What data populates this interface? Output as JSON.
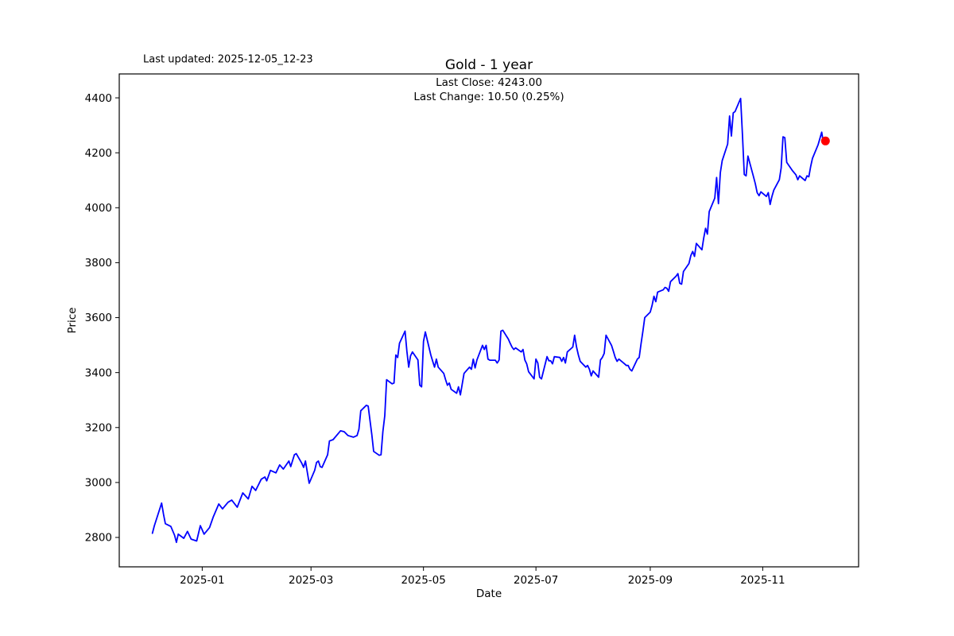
{
  "figure": {
    "title": "Gold - 1 year",
    "last_updated": "Last updated: 2025-12-05_12-23",
    "annotation_last_close": "Last Close: 4243.00",
    "annotation_last_change": "Last Change: 10.50 (0.25%)"
  },
  "chart_data": {
    "type": "line",
    "title": "Gold - 1 year",
    "xlabel": "Date",
    "ylabel": "Price",
    "grid": false,
    "legend": "none",
    "line_color": "#0000ff",
    "marker_color": "#ff0000",
    "axes_color": "#000000",
    "last_close": 4243.0,
    "last_change": 10.5,
    "last_change_pct": 0.25,
    "ylim": [
      2693,
      4487
    ],
    "xlim": [
      "2024-11-17",
      "2025-12-23"
    ],
    "y_ticks": [
      2800,
      3000,
      3200,
      3400,
      3600,
      3800,
      4000,
      4200,
      4400
    ],
    "x_ticks": [
      {
        "date": "2025-01-01",
        "label": "2025-01"
      },
      {
        "date": "2025-03-01",
        "label": "2025-03"
      },
      {
        "date": "2025-05-01",
        "label": "2025-05"
      },
      {
        "date": "2025-07-01",
        "label": "2025-07"
      },
      {
        "date": "2025-09-01",
        "label": "2025-09"
      },
      {
        "date": "2025-11-01",
        "label": "2025-11"
      }
    ],
    "last_point": [
      "2025-12-05",
      4243
    ],
    "series": [
      {
        "name": "Gold",
        "points": [
          [
            "2024-12-05",
            2815
          ],
          [
            "2024-12-06",
            2842
          ],
          [
            "2024-12-10",
            2925
          ],
          [
            "2024-12-11",
            2884
          ],
          [
            "2024-12-12",
            2850
          ],
          [
            "2024-12-15",
            2840
          ],
          [
            "2024-12-17",
            2808
          ],
          [
            "2024-12-18",
            2782
          ],
          [
            "2024-12-19",
            2812
          ],
          [
            "2024-12-22",
            2797
          ],
          [
            "2024-12-24",
            2822
          ],
          [
            "2024-12-26",
            2794
          ],
          [
            "2024-12-29",
            2787
          ],
          [
            "2024-12-31",
            2843
          ],
          [
            "2025-01-02",
            2812
          ],
          [
            "2025-01-05",
            2836
          ],
          [
            "2025-01-07",
            2875
          ],
          [
            "2025-01-10",
            2922
          ],
          [
            "2025-01-12",
            2904
          ],
          [
            "2025-01-15",
            2928
          ],
          [
            "2025-01-17",
            2936
          ],
          [
            "2025-01-20",
            2910
          ],
          [
            "2025-01-23",
            2962
          ],
          [
            "2025-01-26",
            2940
          ],
          [
            "2025-01-28",
            2986
          ],
          [
            "2025-01-30",
            2971
          ],
          [
            "2025-02-02",
            3012
          ],
          [
            "2025-02-04",
            3020
          ],
          [
            "2025-02-05",
            3006
          ],
          [
            "2025-02-07",
            3044
          ],
          [
            "2025-02-10",
            3035
          ],
          [
            "2025-02-12",
            3064
          ],
          [
            "2025-02-14",
            3049
          ],
          [
            "2025-02-17",
            3078
          ],
          [
            "2025-02-18",
            3058
          ],
          [
            "2025-02-20",
            3101
          ],
          [
            "2025-02-21",
            3105
          ],
          [
            "2025-02-24",
            3070
          ],
          [
            "2025-02-25",
            3055
          ],
          [
            "2025-02-26",
            3078
          ],
          [
            "2025-02-28",
            2997
          ],
          [
            "2025-03-03",
            3044
          ],
          [
            "2025-03-04",
            3073
          ],
          [
            "2025-03-05",
            3078
          ],
          [
            "2025-03-06",
            3058
          ],
          [
            "2025-03-07",
            3055
          ],
          [
            "2025-03-10",
            3101
          ],
          [
            "2025-03-11",
            3151
          ],
          [
            "2025-03-13",
            3156
          ],
          [
            "2025-03-17",
            3188
          ],
          [
            "2025-03-19",
            3185
          ],
          [
            "2025-03-21",
            3171
          ],
          [
            "2025-03-24",
            3165
          ],
          [
            "2025-03-26",
            3171
          ],
          [
            "2025-03-27",
            3194
          ],
          [
            "2025-03-28",
            3261
          ],
          [
            "2025-03-31",
            3281
          ],
          [
            "2025-04-01",
            3278
          ],
          [
            "2025-04-03",
            3174
          ],
          [
            "2025-04-04",
            3113
          ],
          [
            "2025-04-07",
            3099
          ],
          [
            "2025-04-08",
            3101
          ],
          [
            "2025-04-09",
            3185
          ],
          [
            "2025-04-10",
            3243
          ],
          [
            "2025-04-11",
            3374
          ],
          [
            "2025-04-14",
            3359
          ],
          [
            "2025-04-15",
            3362
          ],
          [
            "2025-04-16",
            3464
          ],
          [
            "2025-04-17",
            3455
          ],
          [
            "2025-04-18",
            3507
          ],
          [
            "2025-04-21",
            3551
          ],
          [
            "2025-04-22",
            3478
          ],
          [
            "2025-04-23",
            3420
          ],
          [
            "2025-04-24",
            3461
          ],
          [
            "2025-04-25",
            3475
          ],
          [
            "2025-04-28",
            3446
          ],
          [
            "2025-04-29",
            3354
          ],
          [
            "2025-04-30",
            3348
          ],
          [
            "2025-05-01",
            3513
          ],
          [
            "2025-05-02",
            3548
          ],
          [
            "2025-05-05",
            3464
          ],
          [
            "2025-05-06",
            3441
          ],
          [
            "2025-05-07",
            3420
          ],
          [
            "2025-05-08",
            3449
          ],
          [
            "2025-05-09",
            3420
          ],
          [
            "2025-05-12",
            3397
          ],
          [
            "2025-05-13",
            3374
          ],
          [
            "2025-05-14",
            3354
          ],
          [
            "2025-05-15",
            3362
          ],
          [
            "2025-05-16",
            3339
          ],
          [
            "2025-05-19",
            3325
          ],
          [
            "2025-05-20",
            3348
          ],
          [
            "2025-05-21",
            3319
          ],
          [
            "2025-05-23",
            3397
          ],
          [
            "2025-05-26",
            3420
          ],
          [
            "2025-05-27",
            3412
          ],
          [
            "2025-05-28",
            3449
          ],
          [
            "2025-05-29",
            3417
          ],
          [
            "2025-05-30",
            3446
          ],
          [
            "2025-06-02",
            3499
          ],
          [
            "2025-06-03",
            3484
          ],
          [
            "2025-06-04",
            3499
          ],
          [
            "2025-06-05",
            3449
          ],
          [
            "2025-06-06",
            3445
          ],
          [
            "2025-06-09",
            3445
          ],
          [
            "2025-06-10",
            3435
          ],
          [
            "2025-06-11",
            3446
          ],
          [
            "2025-06-12",
            3551
          ],
          [
            "2025-06-13",
            3554
          ],
          [
            "2025-06-16",
            3522
          ],
          [
            "2025-06-17",
            3507
          ],
          [
            "2025-06-18",
            3493
          ],
          [
            "2025-06-19",
            3484
          ],
          [
            "2025-06-20",
            3490
          ],
          [
            "2025-06-23",
            3475
          ],
          [
            "2025-06-24",
            3484
          ],
          [
            "2025-06-25",
            3446
          ],
          [
            "2025-06-26",
            3432
          ],
          [
            "2025-06-27",
            3403
          ],
          [
            "2025-06-30",
            3377
          ],
          [
            "2025-07-01",
            3449
          ],
          [
            "2025-07-02",
            3435
          ],
          [
            "2025-07-03",
            3383
          ],
          [
            "2025-07-04",
            3377
          ],
          [
            "2025-07-07",
            3458
          ],
          [
            "2025-07-08",
            3443
          ],
          [
            "2025-07-09",
            3443
          ],
          [
            "2025-07-10",
            3432
          ],
          [
            "2025-07-11",
            3458
          ],
          [
            "2025-07-14",
            3455
          ],
          [
            "2025-07-15",
            3441
          ],
          [
            "2025-07-16",
            3455
          ],
          [
            "2025-07-17",
            3435
          ],
          [
            "2025-07-18",
            3475
          ],
          [
            "2025-07-21",
            3493
          ],
          [
            "2025-07-22",
            3536
          ],
          [
            "2025-07-23",
            3493
          ],
          [
            "2025-07-24",
            3464
          ],
          [
            "2025-07-25",
            3441
          ],
          [
            "2025-07-28",
            3420
          ],
          [
            "2025-07-29",
            3426
          ],
          [
            "2025-07-30",
            3412
          ],
          [
            "2025-07-31",
            3388
          ],
          [
            "2025-08-01",
            3406
          ],
          [
            "2025-08-04",
            3383
          ],
          [
            "2025-08-05",
            3446
          ],
          [
            "2025-08-06",
            3455
          ],
          [
            "2025-08-07",
            3470
          ],
          [
            "2025-08-08",
            3536
          ],
          [
            "2025-08-11",
            3499
          ],
          [
            "2025-08-12",
            3478
          ],
          [
            "2025-08-13",
            3455
          ],
          [
            "2025-08-14",
            3441
          ],
          [
            "2025-08-15",
            3449
          ],
          [
            "2025-08-18",
            3432
          ],
          [
            "2025-08-19",
            3426
          ],
          [
            "2025-08-20",
            3426
          ],
          [
            "2025-08-21",
            3412
          ],
          [
            "2025-08-22",
            3406
          ],
          [
            "2025-08-25",
            3449
          ],
          [
            "2025-08-26",
            3455
          ],
          [
            "2025-08-27",
            3504
          ],
          [
            "2025-08-28",
            3551
          ],
          [
            "2025-08-29",
            3600
          ],
          [
            "2025-09-01",
            3620
          ],
          [
            "2025-09-02",
            3644
          ],
          [
            "2025-09-03",
            3678
          ],
          [
            "2025-09-04",
            3658
          ],
          [
            "2025-09-05",
            3693
          ],
          [
            "2025-09-08",
            3701
          ],
          [
            "2025-09-09",
            3710
          ],
          [
            "2025-09-10",
            3707
          ],
          [
            "2025-09-11",
            3696
          ],
          [
            "2025-09-12",
            3731
          ],
          [
            "2025-09-15",
            3751
          ],
          [
            "2025-09-16",
            3760
          ],
          [
            "2025-09-17",
            3725
          ],
          [
            "2025-09-18",
            3722
          ],
          [
            "2025-09-19",
            3768
          ],
          [
            "2025-09-22",
            3797
          ],
          [
            "2025-09-23",
            3826
          ],
          [
            "2025-09-24",
            3841
          ],
          [
            "2025-09-25",
            3823
          ],
          [
            "2025-09-26",
            3870
          ],
          [
            "2025-09-29",
            3847
          ],
          [
            "2025-09-30",
            3890
          ],
          [
            "2025-10-01",
            3925
          ],
          [
            "2025-10-02",
            3904
          ],
          [
            "2025-10-03",
            3986
          ],
          [
            "2025-10-06",
            4035
          ],
          [
            "2025-10-07",
            4110
          ],
          [
            "2025-10-08",
            4015
          ],
          [
            "2025-10-09",
            4128
          ],
          [
            "2025-10-10",
            4171
          ],
          [
            "2025-10-13",
            4232
          ],
          [
            "2025-10-14",
            4334
          ],
          [
            "2025-10-15",
            4261
          ],
          [
            "2025-10-16",
            4345
          ],
          [
            "2025-10-17",
            4350
          ],
          [
            "2025-10-20",
            4398
          ],
          [
            "2025-10-21",
            4266
          ],
          [
            "2025-10-22",
            4121
          ],
          [
            "2025-10-23",
            4116
          ],
          [
            "2025-10-24",
            4188
          ],
          [
            "2025-10-27",
            4113
          ],
          [
            "2025-10-28",
            4087
          ],
          [
            "2025-10-29",
            4055
          ],
          [
            "2025-10-30",
            4044
          ],
          [
            "2025-10-31",
            4058
          ],
          [
            "2025-11-03",
            4041
          ],
          [
            "2025-11-04",
            4055
          ],
          [
            "2025-11-05",
            4012
          ],
          [
            "2025-11-06",
            4041
          ],
          [
            "2025-11-07",
            4064
          ],
          [
            "2025-11-10",
            4102
          ],
          [
            "2025-11-11",
            4145
          ],
          [
            "2025-11-12",
            4258
          ],
          [
            "2025-11-13",
            4255
          ],
          [
            "2025-11-14",
            4165
          ],
          [
            "2025-11-17",
            4136
          ],
          [
            "2025-11-18",
            4128
          ],
          [
            "2025-11-19",
            4120
          ],
          [
            "2025-11-20",
            4102
          ],
          [
            "2025-11-21",
            4116
          ],
          [
            "2025-11-24",
            4099
          ],
          [
            "2025-11-25",
            4116
          ],
          [
            "2025-11-26",
            4113
          ],
          [
            "2025-11-27",
            4150
          ],
          [
            "2025-11-28",
            4180
          ],
          [
            "2025-12-01",
            4229
          ],
          [
            "2025-12-02",
            4252
          ],
          [
            "2025-12-03",
            4275
          ],
          [
            "2025-12-04",
            4233
          ],
          [
            "2025-12-05",
            4243
          ]
        ]
      }
    ]
  }
}
